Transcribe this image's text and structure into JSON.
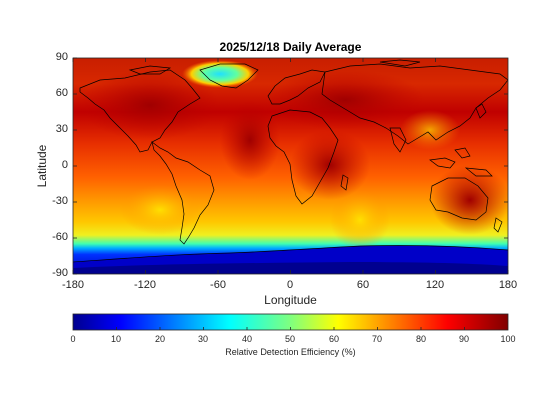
{
  "title": "2025/12/18 Daily Average",
  "xlabel": "Longitude",
  "ylabel": "Latitude",
  "x_ticks": [
    "-180",
    "-120",
    "-60",
    "0",
    "60",
    "120",
    "180"
  ],
  "y_ticks": [
    "90",
    "60",
    "30",
    "0",
    "-30",
    "-60",
    "-90"
  ],
  "colorbar": {
    "label": "Relative Detection Efficiency (%)",
    "ticks": [
      "0",
      "10",
      "20",
      "30",
      "40",
      "50",
      "60",
      "70",
      "80",
      "90",
      "100"
    ],
    "colormap": "jet",
    "range": [
      0,
      100
    ]
  },
  "map": {
    "projection": "equirectangular",
    "lon_range": [
      -180,
      180
    ],
    "lat_range": [
      -90,
      90
    ],
    "coastlines_color": "#000000",
    "field_description": "Daily average relative detection efficiency, highest (~85-100%) over the tropics and mid-latitudes, lowest (~5-15%) over Antarctica, low in the Arctic near Greenland"
  }
}
